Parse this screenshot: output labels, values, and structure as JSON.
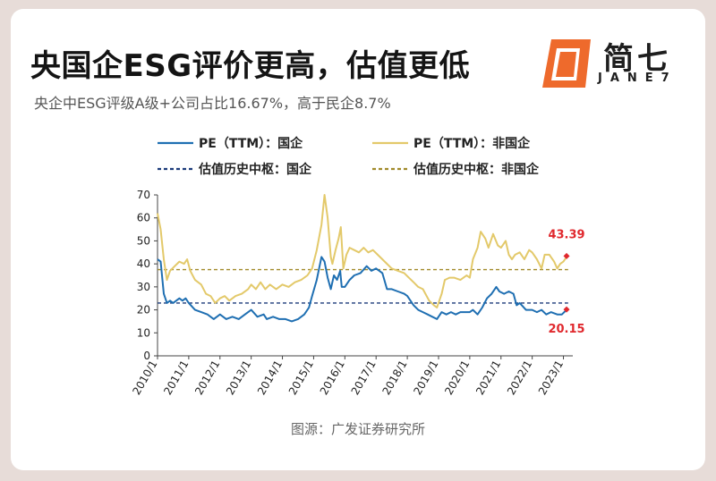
{
  "header": {
    "title": "央国企ESG评价更高，估值更低",
    "subtitle": "央企中ESG评级A级+公司占比16.67%，高于民企8.7%"
  },
  "logo": {
    "cn_text": "简七",
    "en_text": "JANE7",
    "color": "#ee6a2c"
  },
  "footer": {
    "source": "图源：广发证券研究所"
  },
  "chart_data": {
    "type": "line",
    "title": "",
    "xlabel": "",
    "ylabel": "",
    "ylim": [
      0,
      70
    ],
    "yticks": [
      "0",
      "10",
      "20",
      "30",
      "40",
      "50",
      "60",
      "70"
    ],
    "xlim": [
      2010.0,
      2023.3
    ],
    "xticks": [
      {
        "x": 2010,
        "label": "2010/1"
      },
      {
        "x": 2011,
        "label": "2011/1"
      },
      {
        "x": 2012,
        "label": "2012/1"
      },
      {
        "x": 2013,
        "label": "2013/1"
      },
      {
        "x": 2014,
        "label": "2014/1"
      },
      {
        "x": 2015,
        "label": "2015/1"
      },
      {
        "x": 2016,
        "label": "2016/1"
      },
      {
        "x": 2017,
        "label": "2017/1"
      },
      {
        "x": 2018,
        "label": "2018/1"
      },
      {
        "x": 2019,
        "label": "2019/1"
      },
      {
        "x": 2020,
        "label": "2020/1"
      },
      {
        "x": 2021,
        "label": "2021/1"
      },
      {
        "x": 2022,
        "label": "2022/1"
      },
      {
        "x": 2023,
        "label": "2023/1"
      }
    ],
    "grid": false,
    "legend_placement": "top",
    "series": [
      {
        "name": "PE（TTM）：国企",
        "style": "solid",
        "color": "#1f6fb2",
        "points": [
          [
            2010.0,
            42
          ],
          [
            2010.1,
            41
          ],
          [
            2010.2,
            27
          ],
          [
            2010.3,
            23
          ],
          [
            2010.4,
            24
          ],
          [
            2010.5,
            23
          ],
          [
            2010.6,
            24
          ],
          [
            2010.7,
            25
          ],
          [
            2010.8,
            24
          ],
          [
            2010.9,
            25
          ],
          [
            2011.0,
            23
          ],
          [
            2011.2,
            20
          ],
          [
            2011.4,
            19
          ],
          [
            2011.6,
            18
          ],
          [
            2011.8,
            16
          ],
          [
            2011.9,
            17
          ],
          [
            2012.0,
            18
          ],
          [
            2012.2,
            16
          ],
          [
            2012.4,
            17
          ],
          [
            2012.6,
            16
          ],
          [
            2012.8,
            18
          ],
          [
            2013.0,
            20
          ],
          [
            2013.2,
            17
          ],
          [
            2013.4,
            18
          ],
          [
            2013.5,
            16
          ],
          [
            2013.7,
            17
          ],
          [
            2013.9,
            16
          ],
          [
            2014.1,
            16
          ],
          [
            2014.3,
            15
          ],
          [
            2014.5,
            16
          ],
          [
            2014.7,
            18
          ],
          [
            2014.85,
            21
          ],
          [
            2014.95,
            26
          ],
          [
            2015.1,
            33
          ],
          [
            2015.25,
            43
          ],
          [
            2015.35,
            41
          ],
          [
            2015.45,
            34
          ],
          [
            2015.55,
            29
          ],
          [
            2015.65,
            35
          ],
          [
            2015.75,
            33
          ],
          [
            2015.85,
            37
          ],
          [
            2015.9,
            30
          ],
          [
            2016.0,
            30
          ],
          [
            2016.15,
            33
          ],
          [
            2016.3,
            35
          ],
          [
            2016.5,
            36
          ],
          [
            2016.7,
            39
          ],
          [
            2016.85,
            37
          ],
          [
            2017.0,
            38
          ],
          [
            2017.2,
            36
          ],
          [
            2017.35,
            29
          ],
          [
            2017.5,
            29
          ],
          [
            2017.7,
            28
          ],
          [
            2017.9,
            27
          ],
          [
            2018.0,
            26
          ],
          [
            2018.2,
            22
          ],
          [
            2018.35,
            20
          ],
          [
            2018.5,
            19
          ],
          [
            2018.65,
            18
          ],
          [
            2018.8,
            17
          ],
          [
            2018.95,
            16
          ],
          [
            2019.1,
            19
          ],
          [
            2019.25,
            18
          ],
          [
            2019.4,
            19
          ],
          [
            2019.55,
            18
          ],
          [
            2019.7,
            19
          ],
          [
            2019.85,
            19
          ],
          [
            2020.0,
            19
          ],
          [
            2020.1,
            20
          ],
          [
            2020.25,
            18
          ],
          [
            2020.4,
            21
          ],
          [
            2020.55,
            25
          ],
          [
            2020.7,
            27
          ],
          [
            2020.85,
            30
          ],
          [
            2020.95,
            28
          ],
          [
            2021.1,
            27
          ],
          [
            2021.25,
            28
          ],
          [
            2021.4,
            27
          ],
          [
            2021.5,
            22
          ],
          [
            2021.6,
            23
          ],
          [
            2021.8,
            20
          ],
          [
            2022.0,
            20
          ],
          [
            2022.15,
            19
          ],
          [
            2022.3,
            20
          ],
          [
            2022.45,
            18
          ],
          [
            2022.6,
            19
          ],
          [
            2022.8,
            18
          ],
          [
            2022.95,
            18
          ],
          [
            2023.1,
            20
          ]
        ]
      },
      {
        "name": "PE（TTM）：非国企",
        "style": "solid",
        "color": "#e3c96a",
        "points": [
          [
            2010.0,
            62
          ],
          [
            2010.1,
            55
          ],
          [
            2010.2,
            42
          ],
          [
            2010.3,
            33
          ],
          [
            2010.4,
            37
          ],
          [
            2010.55,
            39
          ],
          [
            2010.7,
            41
          ],
          [
            2010.85,
            40
          ],
          [
            2010.95,
            42
          ],
          [
            2011.05,
            37
          ],
          [
            2011.2,
            33
          ],
          [
            2011.4,
            31
          ],
          [
            2011.55,
            27
          ],
          [
            2011.7,
            26
          ],
          [
            2011.85,
            23
          ],
          [
            2012.0,
            25
          ],
          [
            2012.15,
            26
          ],
          [
            2012.3,
            24
          ],
          [
            2012.5,
            26
          ],
          [
            2012.7,
            27
          ],
          [
            2012.9,
            29
          ],
          [
            2013.0,
            31
          ],
          [
            2013.15,
            29
          ],
          [
            2013.3,
            32
          ],
          [
            2013.45,
            29
          ],
          [
            2013.6,
            31
          ],
          [
            2013.8,
            29
          ],
          [
            2014.0,
            31
          ],
          [
            2014.2,
            30
          ],
          [
            2014.4,
            32
          ],
          [
            2014.6,
            33
          ],
          [
            2014.8,
            35
          ],
          [
            2014.95,
            38
          ],
          [
            2015.1,
            46
          ],
          [
            2015.25,
            57
          ],
          [
            2015.35,
            70
          ],
          [
            2015.45,
            60
          ],
          [
            2015.55,
            43
          ],
          [
            2015.6,
            40
          ],
          [
            2015.7,
            46
          ],
          [
            2015.8,
            51
          ],
          [
            2015.87,
            56
          ],
          [
            2015.95,
            38
          ],
          [
            2016.05,
            44
          ],
          [
            2016.15,
            47
          ],
          [
            2016.3,
            46
          ],
          [
            2016.45,
            45
          ],
          [
            2016.6,
            47
          ],
          [
            2016.75,
            45
          ],
          [
            2016.9,
            46
          ],
          [
            2017.05,
            44
          ],
          [
            2017.2,
            42
          ],
          [
            2017.35,
            40
          ],
          [
            2017.5,
            38
          ],
          [
            2017.7,
            37
          ],
          [
            2017.9,
            36
          ],
          [
            2018.05,
            34
          ],
          [
            2018.2,
            32
          ],
          [
            2018.35,
            30
          ],
          [
            2018.5,
            29
          ],
          [
            2018.7,
            24
          ],
          [
            2018.85,
            22
          ],
          [
            2018.95,
            21
          ],
          [
            2019.1,
            27
          ],
          [
            2019.2,
            33
          ],
          [
            2019.35,
            34
          ],
          [
            2019.5,
            34
          ],
          [
            2019.7,
            33
          ],
          [
            2019.9,
            35
          ],
          [
            2020.0,
            34
          ],
          [
            2020.1,
            42
          ],
          [
            2020.25,
            47
          ],
          [
            2020.35,
            54
          ],
          [
            2020.5,
            51
          ],
          [
            2020.6,
            47
          ],
          [
            2020.75,
            53
          ],
          [
            2020.9,
            48
          ],
          [
            2021.0,
            47
          ],
          [
            2021.15,
            50
          ],
          [
            2021.25,
            44
          ],
          [
            2021.35,
            42
          ],
          [
            2021.45,
            44
          ],
          [
            2021.6,
            45
          ],
          [
            2021.75,
            42
          ],
          [
            2021.9,
            46
          ],
          [
            2022.0,
            45
          ],
          [
            2022.15,
            42
          ],
          [
            2022.3,
            38
          ],
          [
            2022.4,
            44
          ],
          [
            2022.55,
            44
          ],
          [
            2022.7,
            41
          ],
          [
            2022.8,
            38
          ],
          [
            2022.9,
            40
          ],
          [
            2023.0,
            41
          ],
          [
            2023.1,
            43
          ]
        ]
      },
      {
        "name": "估值历史中枢：国企",
        "style": "dashed",
        "color": "#1b3a7a",
        "points": [
          [
            2010.0,
            23
          ],
          [
            2023.15,
            23
          ]
        ]
      },
      {
        "name": "估值历史中枢：非国企",
        "style": "dashed",
        "color": "#a18a2a",
        "points": [
          [
            2010.0,
            37.5
          ],
          [
            2023.15,
            37.5
          ]
        ]
      }
    ],
    "annotations": [
      {
        "text": "43.39",
        "x": 2023.1,
        "y": 43.39,
        "color": "#e0282d",
        "placement": "above"
      },
      {
        "text": "20.15",
        "x": 2023.1,
        "y": 20.15,
        "color": "#e0282d",
        "placement": "below"
      }
    ]
  }
}
